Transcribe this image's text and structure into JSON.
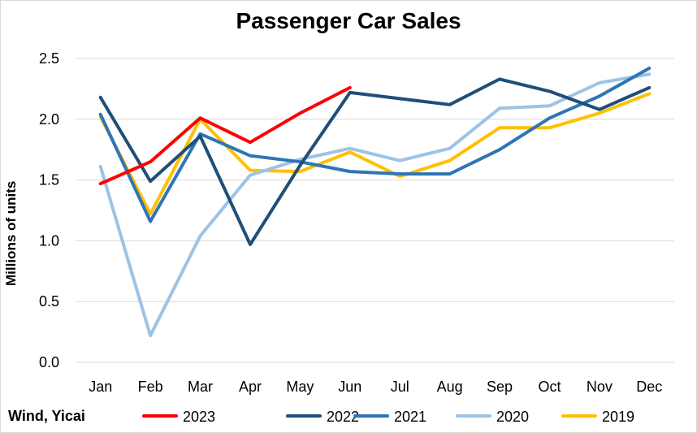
{
  "chart_data": {
    "type": "line",
    "title": "Passenger Car Sales",
    "xlabel": "",
    "ylabel": "Millions of units",
    "source": "Wind, Yicai",
    "categories": [
      "Jan",
      "Feb",
      "Mar",
      "Apr",
      "May",
      "Jun",
      "Jul",
      "Aug",
      "Sep",
      "Oct",
      "Nov",
      "Dec"
    ],
    "ylim": [
      0.0,
      2.5
    ],
    "yticks": [
      "0.0",
      "0.5",
      "1.0",
      "1.5",
      "2.0",
      "2.5"
    ],
    "grid": true,
    "legend_position": "bottom",
    "series": [
      {
        "name": "2023",
        "color": "#ff0000",
        "values": [
          1.47,
          1.65,
          2.01,
          1.81,
          2.05,
          2.26,
          null,
          null,
          null,
          null,
          null,
          null
        ]
      },
      {
        "name": "2022",
        "color": "#1f4e79",
        "values": [
          2.18,
          1.49,
          1.86,
          0.97,
          1.62,
          2.22,
          2.17,
          2.12,
          2.33,
          2.23,
          2.08,
          2.26
        ]
      },
      {
        "name": "2021",
        "color": "#2e75b6",
        "values": [
          2.04,
          1.16,
          1.88,
          1.7,
          1.65,
          1.57,
          1.55,
          1.55,
          1.75,
          2.01,
          2.19,
          2.42
        ]
      },
      {
        "name": "2020",
        "color": "#9dc3e6",
        "values": [
          1.61,
          0.22,
          1.04,
          1.54,
          1.67,
          1.76,
          1.66,
          1.76,
          2.09,
          2.11,
          2.3,
          2.37
        ]
      },
      {
        "name": "2019",
        "color": "#ffc000",
        "values": [
          2.02,
          1.22,
          2.0,
          1.58,
          1.57,
          1.73,
          1.53,
          1.66,
          1.93,
          1.93,
          2.05,
          2.21
        ]
      }
    ]
  }
}
